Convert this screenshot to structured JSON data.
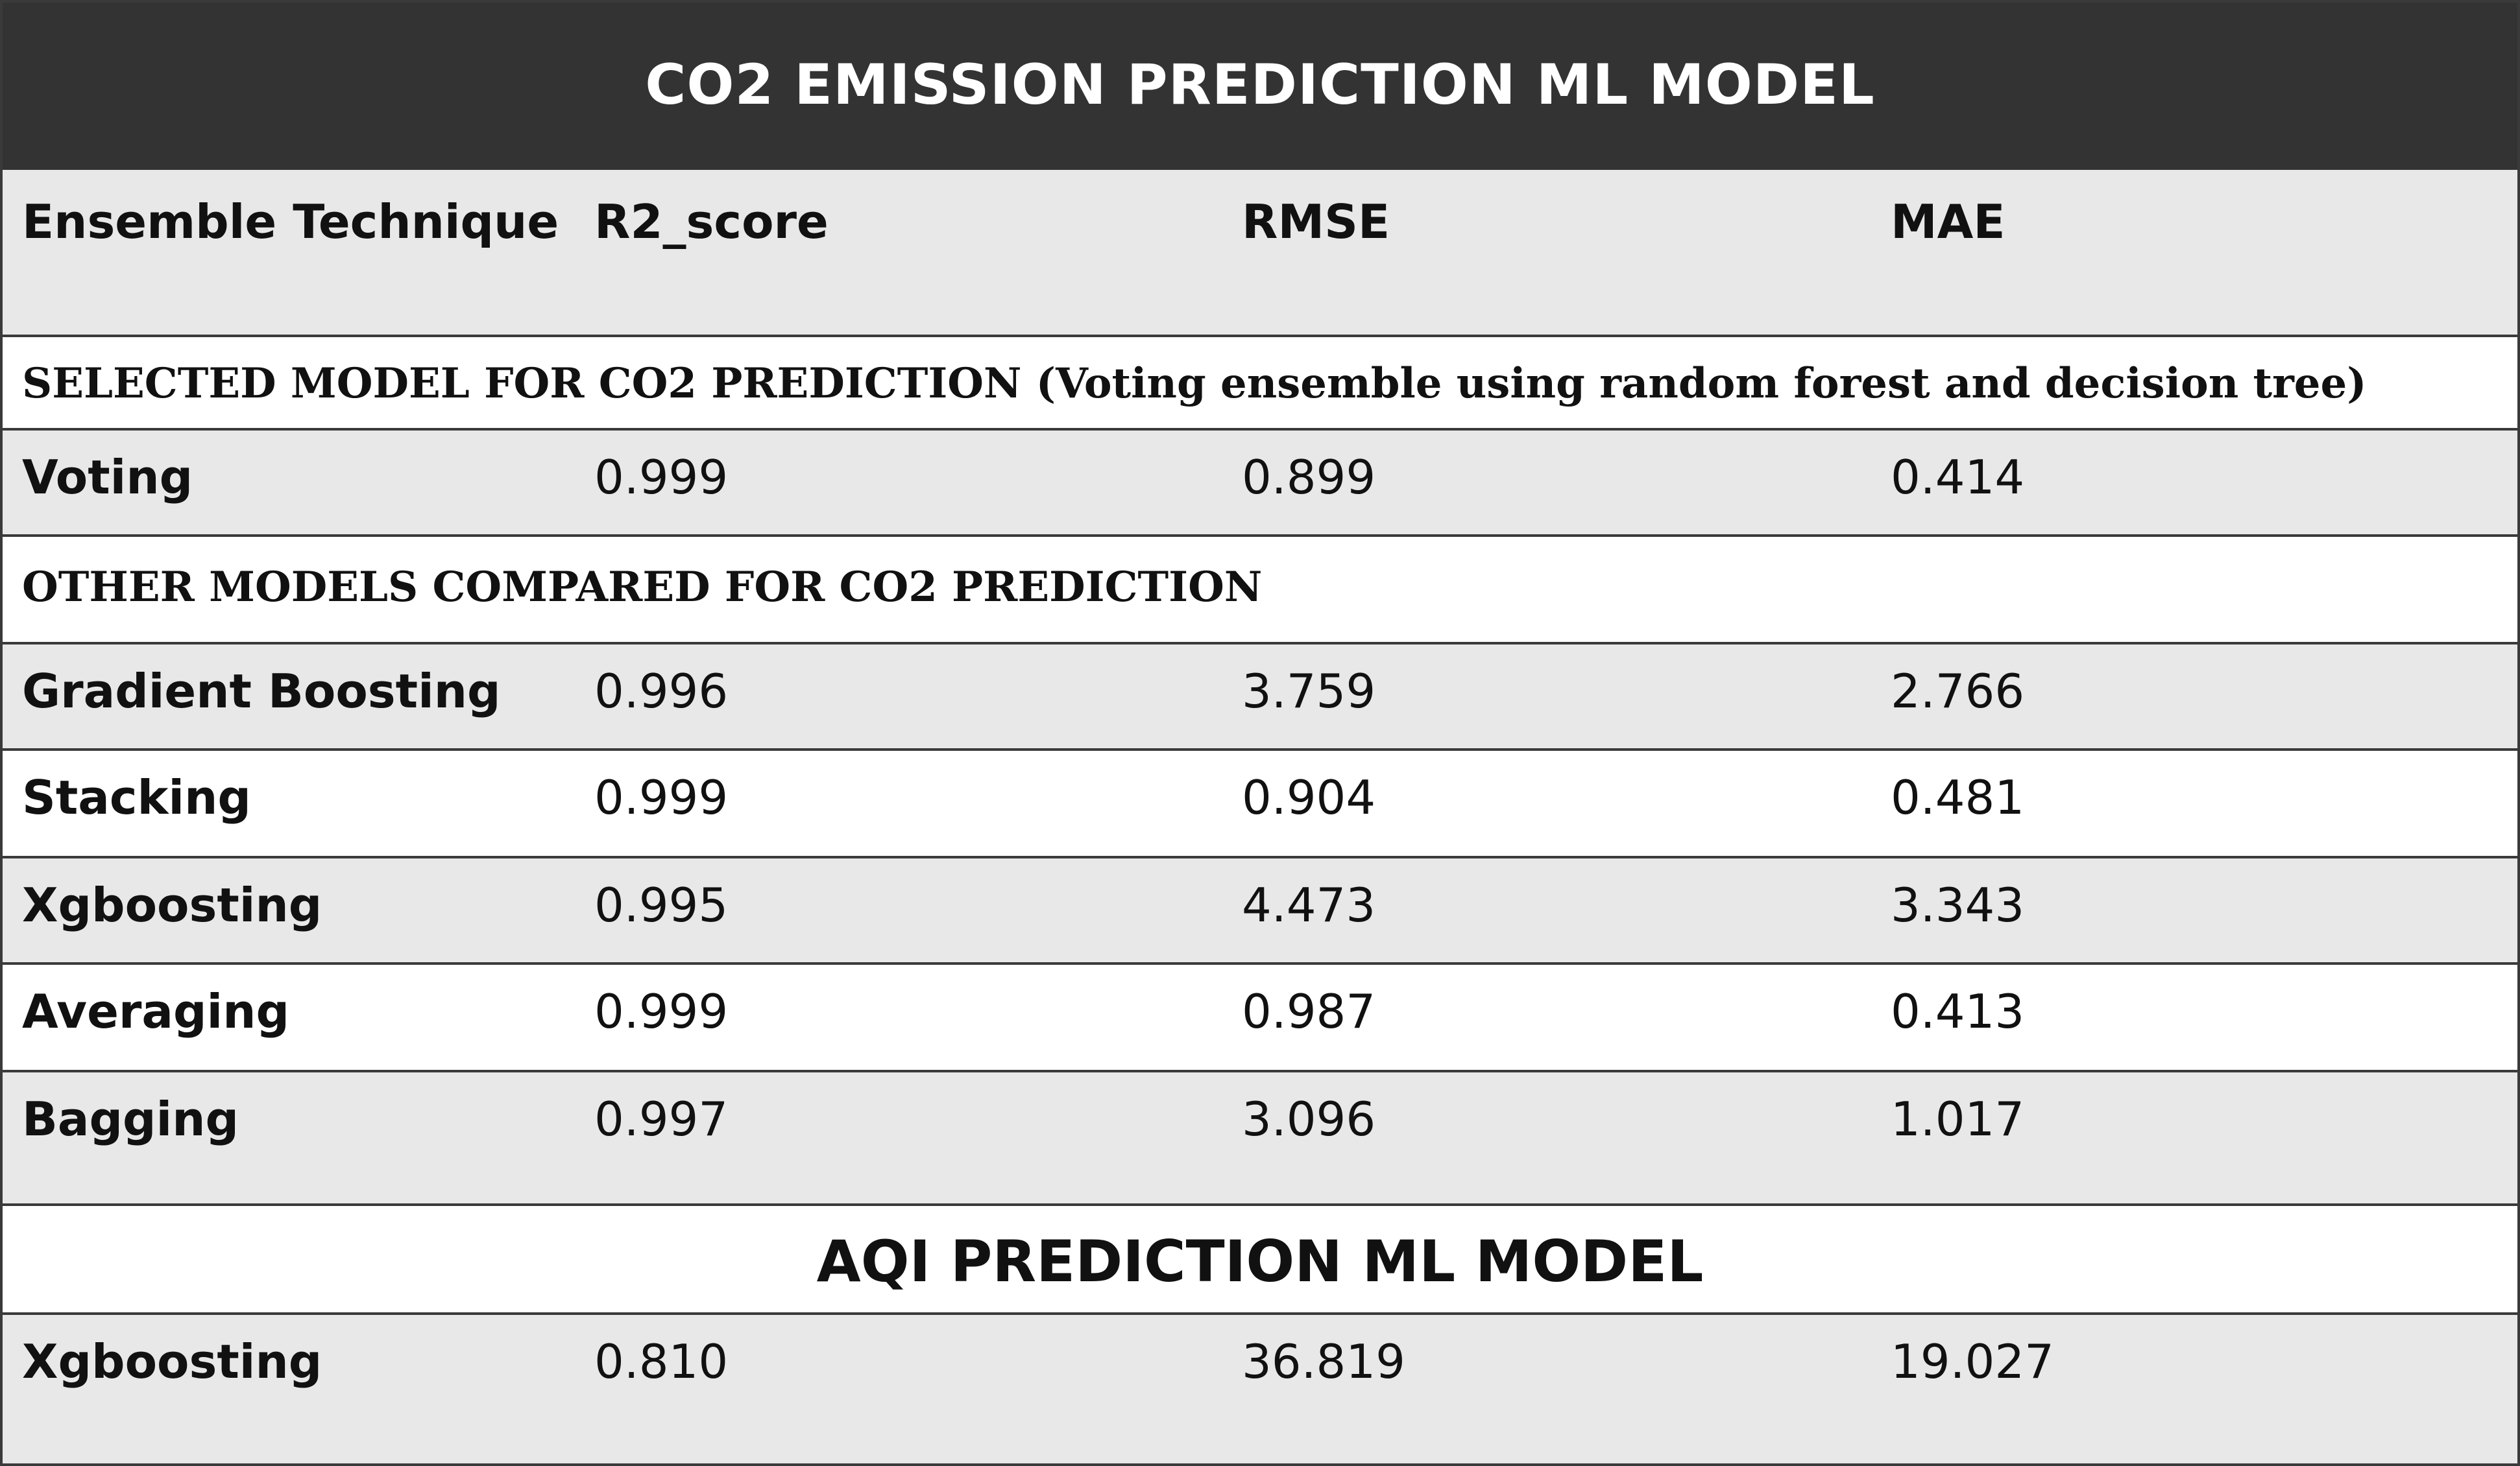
{
  "title": "CO2 EMISSION PREDICTION ML MODEL",
  "columns": [
    "Ensemble Technique",
    "R2_score",
    "RMSE",
    "MAE"
  ],
  "selected_section": "SELECTED MODEL FOR CO2 PREDICTION (Voting ensemble using random forest and decision tree)",
  "selected_rows": [
    {
      "technique": "Voting",
      "r2": "0.999",
      "rmse": "0.899",
      "mae": "0.414"
    }
  ],
  "other_section": "OTHER MODELS COMPARED FOR CO2 PREDICTION",
  "other_rows": [
    {
      "technique": "Gradient Boosting",
      "r2": "0.996",
      "rmse": "3.759",
      "mae": "2.766"
    },
    {
      "technique": "Stacking",
      "r2": "0.999",
      "rmse": "0.904",
      "mae": "0.481"
    },
    {
      "technique": "Xgboosting",
      "r2": "0.995",
      "rmse": "4.473",
      "mae": "3.343"
    },
    {
      "technique": "Averaging",
      "r2": "0.999",
      "rmse": "0.987",
      "mae": "0.413"
    },
    {
      "technique": "Bagging",
      "r2": "0.997",
      "rmse": "3.096",
      "mae": "1.017"
    }
  ],
  "aqi_title": "AQI PREDICTION ML MODEL",
  "aqi_rows": [
    {
      "technique": "Xgboosting",
      "r2": "0.810",
      "rmse": "36.819",
      "mae": "19.027"
    }
  ],
  "colors": {
    "header_bg": "#333333",
    "row_grey": "#e8e8e8",
    "row_white": "#ffffff",
    "border": "#3a3a3a"
  }
}
